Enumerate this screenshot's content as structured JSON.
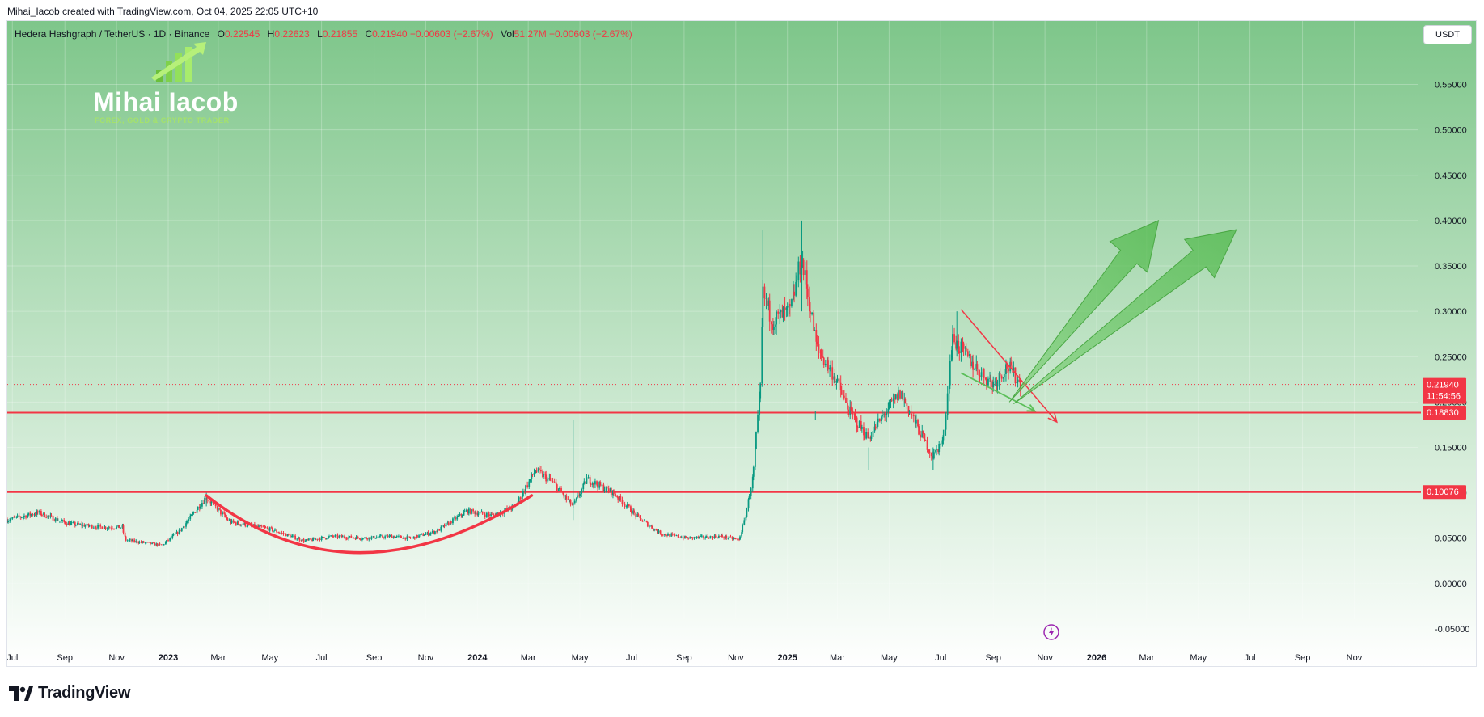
{
  "header": {
    "credit": "Mihai_Iacob created with TradingView.com, Oct 04, 2025 22:05 UTC+10"
  },
  "legend": {
    "symbol": "Hedera Hashgraph / TetherUS · 1D · Binance",
    "open_label": "O",
    "open": "0.22545",
    "high_label": "H",
    "high": "0.22623",
    "low_label": "L",
    "low": "0.21855",
    "close_label": "C",
    "close": "0.21940 −0.00603 (−2.67%)",
    "vol_label": "Vol",
    "vol": "51.27M −0.00603 (−2.67%)"
  },
  "currency_button": "USDT",
  "watermark": {
    "name": "Mihai Iacob",
    "tagline": "FOREX, GOLD & CRYPTO TRADER"
  },
  "footer": {
    "brand": "TradingView"
  },
  "colors": {
    "bg_top": "#7ec68a",
    "bg_bottom": "#ffffff",
    "up": "#089981",
    "down": "#f23645",
    "level_line": "#f23645",
    "arrow_fill": "#5cbf5a"
  },
  "chart_data": {
    "type": "candlestick",
    "interval": "1D",
    "ylim": [
      -0.075,
      0.62
    ],
    "y_ticks": [
      "0.55000",
      "0.50000",
      "0.45000",
      "0.40000",
      "0.35000",
      "0.30000",
      "0.25000",
      "0.20000",
      "0.15000",
      "0.10000",
      "0.05000",
      "0.00000",
      "-0.05000"
    ],
    "y_tick_values": [
      0.55,
      0.5,
      0.45,
      0.4,
      0.35,
      0.3,
      0.25,
      0.2,
      0.15,
      0.1,
      0.05,
      0.0,
      -0.05
    ],
    "x_ticks": [
      "Jul",
      "Sep",
      "Nov",
      "2023",
      "Mar",
      "May",
      "Jul",
      "Sep",
      "Nov",
      "2024",
      "Mar",
      "May",
      "Jul",
      "Sep",
      "Nov",
      "2025",
      "Mar",
      "May",
      "Jul",
      "Sep",
      "Nov",
      "2026",
      "Mar",
      "May",
      "Jul",
      "Sep",
      "Nov"
    ],
    "x_tick_dates": [
      "2022-07",
      "2022-09",
      "2022-11",
      "2023-01",
      "2023-03",
      "2023-05",
      "2023-07",
      "2023-09",
      "2023-11",
      "2024-01",
      "2024-03",
      "2024-05",
      "2024-07",
      "2024-09",
      "2024-11",
      "2025-01",
      "2025-03",
      "2025-05",
      "2025-07",
      "2025-09",
      "2025-11",
      "2026-01",
      "2026-03",
      "2026-05",
      "2026-07",
      "2026-09",
      "2026-11"
    ],
    "x_start": "2022-06-25",
    "x_end": "2027-01-15",
    "price_path": [
      [
        "2022-06-25",
        0.07
      ],
      [
        "2022-08-01",
        0.078
      ],
      [
        "2022-09-05",
        0.066
      ],
      [
        "2022-10-15",
        0.062
      ],
      [
        "2022-11-08",
        0.062
      ],
      [
        "2022-11-12",
        0.048
      ],
      [
        "2022-12-25",
        0.042
      ],
      [
        "2023-01-15",
        0.058
      ],
      [
        "2023-02-15",
        0.095
      ],
      [
        "2023-03-15",
        0.068
      ],
      [
        "2023-05-01",
        0.06
      ],
      [
        "2023-06-12",
        0.047
      ],
      [
        "2023-07-15",
        0.052
      ],
      [
        "2023-08-20",
        0.05
      ],
      [
        "2023-09-20",
        0.052
      ],
      [
        "2023-10-15",
        0.05
      ],
      [
        "2023-11-15",
        0.058
      ],
      [
        "2023-12-20",
        0.08
      ],
      [
        "2024-01-20",
        0.075
      ],
      [
        "2024-02-15",
        0.085
      ],
      [
        "2024-03-10",
        0.125
      ],
      [
        "2024-04-01",
        0.11
      ],
      [
        "2024-04-23",
        0.085
      ],
      [
        "2024-05-10",
        0.115
      ],
      [
        "2024-06-10",
        0.1
      ],
      [
        "2024-07-10",
        0.072
      ],
      [
        "2024-08-05",
        0.055
      ],
      [
        "2024-09-05",
        0.05
      ],
      [
        "2024-10-15",
        0.052
      ],
      [
        "2024-11-05",
        0.048
      ],
      [
        "2024-11-12",
        0.07
      ],
      [
        "2024-11-22",
        0.12
      ],
      [
        "2024-12-01",
        0.22
      ],
      [
        "2024-12-03",
        0.32
      ],
      [
        "2024-12-15",
        0.29
      ],
      [
        "2025-01-05",
        0.3
      ],
      [
        "2025-01-18",
        0.36
      ],
      [
        "2025-02-05",
        0.26
      ],
      [
        "2025-02-25",
        0.23
      ],
      [
        "2025-03-15",
        0.19
      ],
      [
        "2025-04-07",
        0.16
      ],
      [
        "2025-04-28",
        0.19
      ],
      [
        "2025-05-15",
        0.21
      ],
      [
        "2025-06-05",
        0.17
      ],
      [
        "2025-06-22",
        0.14
      ],
      [
        "2025-07-05",
        0.16
      ],
      [
        "2025-07-15",
        0.27
      ],
      [
        "2025-08-10",
        0.24
      ],
      [
        "2025-09-01",
        0.22
      ],
      [
        "2025-09-18",
        0.24
      ],
      [
        "2025-10-04",
        0.2194
      ]
    ],
    "spikes": [
      [
        "2023-02-15",
        0.1,
        0.085
      ],
      [
        "2024-04-23",
        0.18,
        0.07
      ],
      [
        "2024-12-03",
        0.39,
        0.25
      ],
      [
        "2025-01-18",
        0.4,
        0.3
      ],
      [
        "2025-02-03",
        0.19,
        0.18
      ],
      [
        "2025-04-07",
        0.15,
        0.125
      ],
      [
        "2025-06-22",
        0.15,
        0.125
      ],
      [
        "2025-07-20",
        0.3,
        0.25
      ]
    ],
    "last_price": 0.2194,
    "last_price_label": "0.21940",
    "countdown_label": "11:54:56",
    "levels": [
      {
        "price": 0.1883,
        "label": "0.18830"
      },
      {
        "price": 0.10076,
        "label": "0.10076"
      }
    ],
    "annotations": {
      "rounding_bottom": [
        [
          "2023-02-15",
          0.097
        ],
        [
          "2023-08-05",
          0.034
        ],
        [
          "2024-03-05",
          0.097
        ]
      ],
      "falling_wedge_top": [
        [
          "2025-07-25",
          0.302
        ],
        [
          "2025-11-15",
          0.178
        ]
      ],
      "falling_wedge_bottom": [
        [
          "2025-07-25",
          0.232
        ],
        [
          "2025-10-20",
          0.19
        ]
      ],
      "arrow_1": [
        [
          "2025-09-20",
          0.2
        ],
        [
          "2026-03-15",
          0.4
        ]
      ],
      "arrow_2": [
        [
          "2025-09-25",
          0.198
        ],
        [
          "2026-06-15",
          0.39
        ]
      ]
    }
  }
}
